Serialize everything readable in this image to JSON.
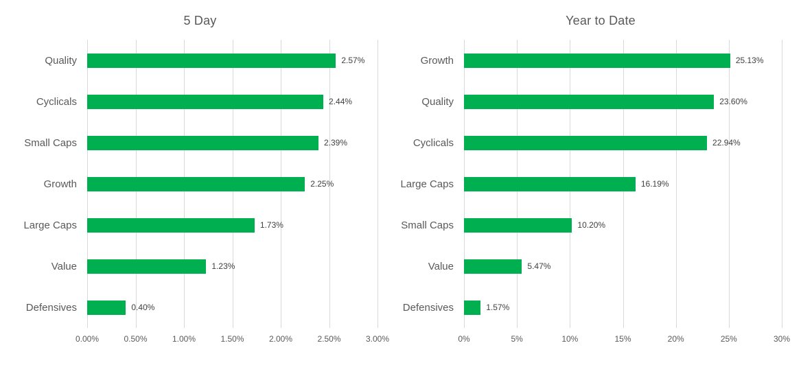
{
  "page": {
    "background_color": "#ffffff",
    "text_color_primary": "#595959",
    "text_color_data_labels": "#404040",
    "gridline_color": "#d9d9d9",
    "accent_color": "#00B050"
  },
  "chart_data": [
    {
      "type": "bar",
      "orientation": "horizontal",
      "title": "5 Day",
      "categories": [
        "Quality",
        "Cyclicals",
        "Small Caps",
        "Growth",
        "Large Caps",
        "Value",
        "Defensives"
      ],
      "values": [
        2.57,
        2.44,
        2.39,
        2.25,
        1.73,
        1.23,
        0.4
      ],
      "data_labels": [
        "2.57%",
        "2.44%",
        "2.39%",
        "2.25%",
        "1.73%",
        "1.23%",
        "0.40%"
      ],
      "xlim": [
        0,
        3
      ],
      "xticks": [
        0,
        0.5,
        1,
        1.5,
        2,
        2.5,
        3
      ],
      "xtick_labels": [
        "0.00%",
        "0.50%",
        "1.00%",
        "1.50%",
        "2.00%",
        "2.50%",
        "3.00%"
      ],
      "bar_color": "#00B050",
      "grid": "vertical-only",
      "legend": "none"
    },
    {
      "type": "bar",
      "orientation": "horizontal",
      "title": "Year to Date",
      "categories": [
        "Growth",
        "Quality",
        "Cyclicals",
        "Large Caps",
        "Small Caps",
        "Value",
        "Defensives"
      ],
      "values": [
        25.13,
        23.6,
        22.94,
        16.19,
        10.2,
        5.47,
        1.57
      ],
      "data_labels": [
        "25.13%",
        "23.60%",
        "22.94%",
        "16.19%",
        "10.20%",
        "5.47%",
        "1.57%"
      ],
      "xlim": [
        0,
        30
      ],
      "xticks": [
        0,
        5,
        10,
        15,
        20,
        25,
        30
      ],
      "xtick_labels": [
        "0%",
        "5%",
        "10%",
        "15%",
        "20%",
        "25%",
        "30%"
      ],
      "bar_color": "#00B050",
      "grid": "vertical-only",
      "legend": "none"
    }
  ]
}
